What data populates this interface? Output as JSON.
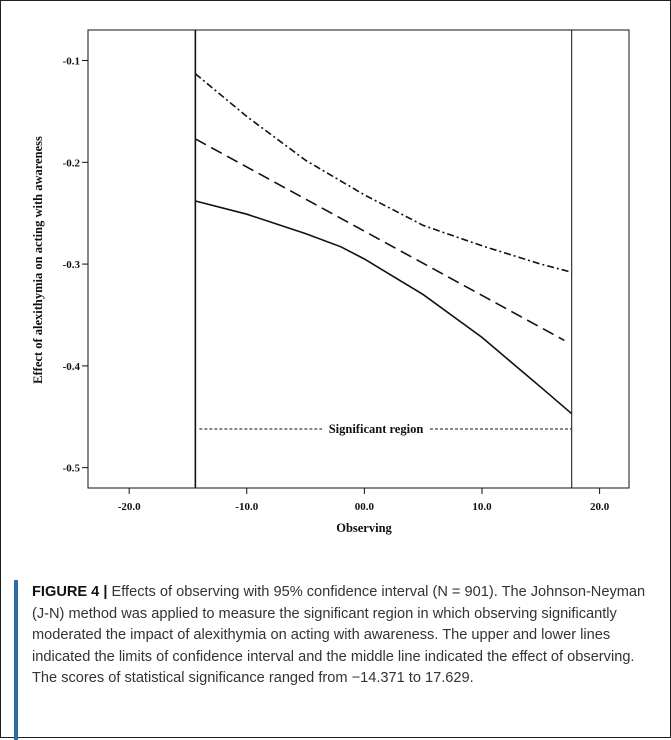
{
  "chart_data": {
    "type": "line",
    "xlabel": "Observing",
    "ylabel": "Effect of alexithymia on acting with awareness",
    "xlim": [
      -23.5,
      22.5
    ],
    "ylim": [
      -0.52,
      -0.07
    ],
    "x_ticks": [
      -20,
      -10,
      0,
      10,
      20
    ],
    "x_tick_labels": [
      "-20.0",
      "-10.0",
      "00.0",
      "10.0",
      "20.0"
    ],
    "y_ticks": [
      -0.1,
      -0.2,
      -0.3,
      -0.4,
      -0.5
    ],
    "y_tick_labels": [
      "-0.1",
      "-0.2",
      "-0.3",
      "-0.4",
      "-0.5"
    ],
    "boundaries": [
      -14.371,
      17.629
    ],
    "series": [
      {
        "style": "dash-dot",
        "x": [
          -14.371,
          -10,
          -5,
          0,
          5,
          10,
          15,
          17.629
        ],
        "y": [
          -0.113,
          -0.155,
          -0.198,
          -0.232,
          -0.262,
          -0.282,
          -0.3,
          -0.308
        ]
      },
      {
        "style": "dashed",
        "x": [
          -14.371,
          17.0
        ],
        "y": [
          -0.177,
          -0.375
        ]
      },
      {
        "style": "solid",
        "x": [
          -14.371,
          -10,
          -5,
          -2,
          0,
          5,
          10,
          15,
          17.629
        ],
        "y": [
          -0.238,
          -0.251,
          -0.27,
          -0.283,
          -0.295,
          -0.33,
          -0.372,
          -0.421,
          -0.447
        ]
      }
    ],
    "annotation": {
      "text": "Significant region",
      "y": -0.462,
      "x_range": [
        -14.371,
        17.629
      ]
    }
  },
  "caption": {
    "label": "FIGURE 4 |",
    "text": " Effects of observing with 95% confidence interval (N = 901). The Johnson-Neyman (J-N) method was applied to measure the significant region in which observing significantly moderated the impact of alexithymia on acting with awareness. The upper and lower lines indicated the limits of confidence interval and the middle line indicated the effect of observing. The scores of statistical significance ranged from −14.371 to 17.629."
  }
}
